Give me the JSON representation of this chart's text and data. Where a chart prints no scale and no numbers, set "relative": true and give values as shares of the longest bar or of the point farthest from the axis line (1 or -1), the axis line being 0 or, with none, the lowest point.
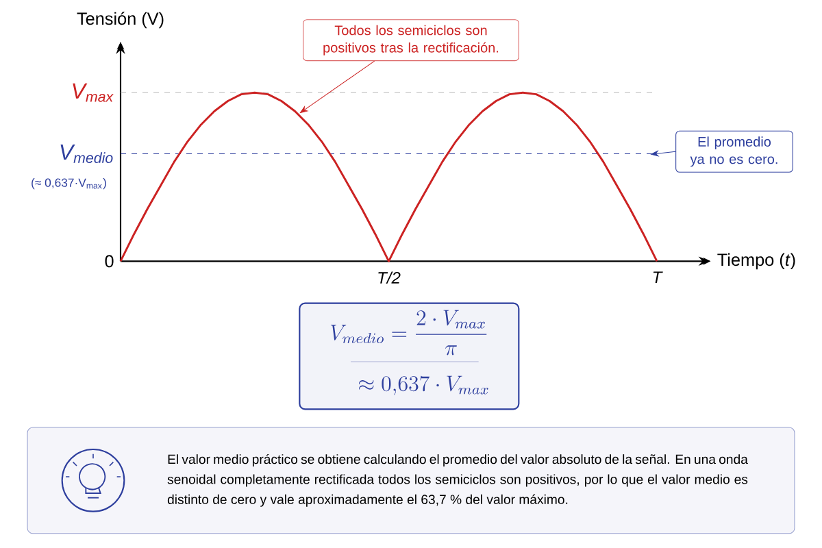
{
  "chart_data": {
    "type": "line",
    "relative": true,
    "ylabel": "Tensión (V)",
    "xlabel": "Tiempo (*t*)",
    "categories": [
      null,
      null,
      null,
      null,
      null,
      null,
      null,
      null,
      null,
      null,
      null,
      null,
      null,
      null,
      null,
      null,
      null,
      null,
      null,
      null,
      "*T*/2",
      null,
      null,
      null,
      null,
      null,
      null,
      null,
      null,
      null,
      null,
      null,
      null,
      null,
      null,
      null,
      null,
      null,
      null,
      null,
      "*T*"
    ],
    "series": [
      {
        "color": "#cc2222",
        "values": [
          0,
          0.16,
          0.31,
          0.45,
          0.59,
          0.71,
          0.81,
          0.89,
          0.95,
          0.99,
          1,
          0.99,
          0.95,
          0.89,
          0.81,
          0.71,
          0.59,
          0.45,
          0.31,
          0.16,
          0,
          0.16,
          0.31,
          0.45,
          0.59,
          0.71,
          0.81,
          0.89,
          0.95,
          0.99,
          1,
          0.99,
          0.95,
          0.89,
          0.81,
          0.71,
          0.59,
          0.45,
          0.31,
          0.16,
          0
        ]
      }
    ],
    "ref_lines": [
      {
        "axis": "y",
        "value": 1,
        "label": "V$_{max}$",
        "color": "#bbbbbb",
        "line_style": "dashed"
      },
      {
        "axis": "y",
        "value": 0.637,
        "label": "V$_{medio}$",
        "color": "#2e3f9e",
        "line_style": "dashed"
      }
    ],
    "annotations": [
      "Todos los semiciclos son positivos tras la rectificación.",
      "El promedio ya no es cero.",
      "(≈ 0,637·V$_{max}$)",
      "V_{medio} = \\frac{2 \\cdot V_{max}}{\\pi}",
      "\\approx 0{,}637 \\cdot V_{max}",
      "El valor medio práctico se obtiene calculando el promedio del valor absoluto de la señal. En una onda senoidal completamente rectificada todos los semiciclos son positivos, por lo que el valor medio es distinto de cero y vale aproximadamente el 63,7 % del valor máximo.",
      "0"
    ],
    "marker": "none",
    "line_style": "solid"
  }
}
